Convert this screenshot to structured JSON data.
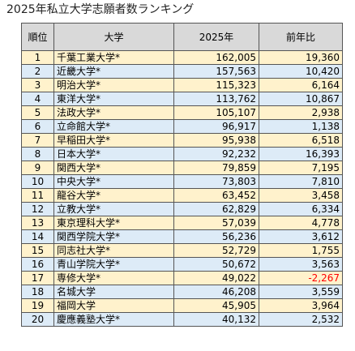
{
  "title": "2025年私立大学志願者数ランキング",
  "headers": {
    "rank": "順位",
    "university": "大学",
    "applicants": "2025年",
    "change": "前年比"
  },
  "rows": [
    {
      "rank": "1",
      "name": "千葉工業大学*",
      "applicants": "162,005",
      "change": "19,360"
    },
    {
      "rank": "2",
      "name": "近畿大学*",
      "applicants": "157,563",
      "change": "10,420"
    },
    {
      "rank": "3",
      "name": "明治大学*",
      "applicants": "115,323",
      "change": "6,164"
    },
    {
      "rank": "4",
      "name": "東洋大学*",
      "applicants": "113,762",
      "change": "10,867"
    },
    {
      "rank": "5",
      "name": "法政大学*",
      "applicants": "105,107",
      "change": "2,938"
    },
    {
      "rank": "6",
      "name": "立命館大学*",
      "applicants": "96,917",
      "change": "1,138"
    },
    {
      "rank": "7",
      "name": "早稲田大学*",
      "applicants": "95,938",
      "change": "6,518"
    },
    {
      "rank": "8",
      "name": "日本大学*",
      "applicants": "92,232",
      "change": "16,393"
    },
    {
      "rank": "9",
      "name": "関西大学*",
      "applicants": "79,859",
      "change": "7,195"
    },
    {
      "rank": "10",
      "name": "中央大学*",
      "applicants": "73,803",
      "change": "7,810"
    },
    {
      "rank": "11",
      "name": "龍谷大学*",
      "applicants": "63,452",
      "change": "3,458"
    },
    {
      "rank": "12",
      "name": "立教大学*",
      "applicants": "62,829",
      "change": "6,334"
    },
    {
      "rank": "13",
      "name": "東京理科大学*",
      "applicants": "57,039",
      "change": "4,778"
    },
    {
      "rank": "14",
      "name": "関西学院大学*",
      "applicants": "56,236",
      "change": "3,612"
    },
    {
      "rank": "15",
      "name": "同志社大学*",
      "applicants": "52,729",
      "change": "1,755"
    },
    {
      "rank": "16",
      "name": "青山学院大学*",
      "applicants": "50,672",
      "change": "3,563"
    },
    {
      "rank": "17",
      "name": "専修大学*",
      "applicants": "49,022",
      "change": "-2,267",
      "negative": true
    },
    {
      "rank": "18",
      "name": "名城大学",
      "applicants": "46,208",
      "change": "3,559"
    },
    {
      "rank": "19",
      "name": "福岡大学",
      "applicants": "45,905",
      "change": "3,964"
    },
    {
      "rank": "20",
      "name": "慶應義塾大学*",
      "applicants": "40,132",
      "change": "2,532"
    }
  ],
  "colors": {
    "header_bg": "#d9d9d9",
    "odd_row_bg": "#fff2cc",
    "even_row_bg": "#ddebf7",
    "negative_text": "#ff0000"
  }
}
